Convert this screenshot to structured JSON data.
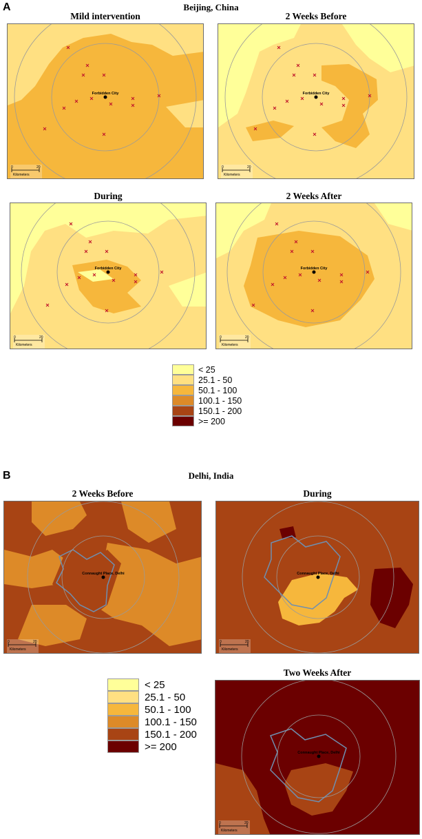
{
  "panel_a": {
    "letter": "A",
    "title": "Beijing, China",
    "center_label": "Forbidden City",
    "maps": [
      {
        "title": "Mild intervention"
      },
      {
        "title": "2 Weeks Before"
      },
      {
        "title": "During"
      },
      {
        "title": "2 Weeks After"
      }
    ]
  },
  "panel_b": {
    "letter": "B",
    "title": "Delhi, India",
    "center_label": "Connaught Place, Delhi",
    "maps": [
      {
        "title": "2 Weeks Before"
      },
      {
        "title": "During"
      },
      {
        "title": "Two Weeks After"
      }
    ]
  },
  "scale_bar": {
    "start": "0",
    "end": "20",
    "unit": "Kilometers"
  },
  "legend": {
    "items": [
      {
        "label": "< 25",
        "color": "#ffff99"
      },
      {
        "label": "25.1 - 50",
        "color": "#ffe082"
      },
      {
        "label": "50.1 - 100",
        "color": "#f6b73c"
      },
      {
        "label": "100.1 - 150",
        "color": "#dd8a28"
      },
      {
        "label": "150.1 - 200",
        "color": "#a84414"
      },
      {
        "label": ">= 200",
        "color": "#6b0000"
      }
    ]
  }
}
